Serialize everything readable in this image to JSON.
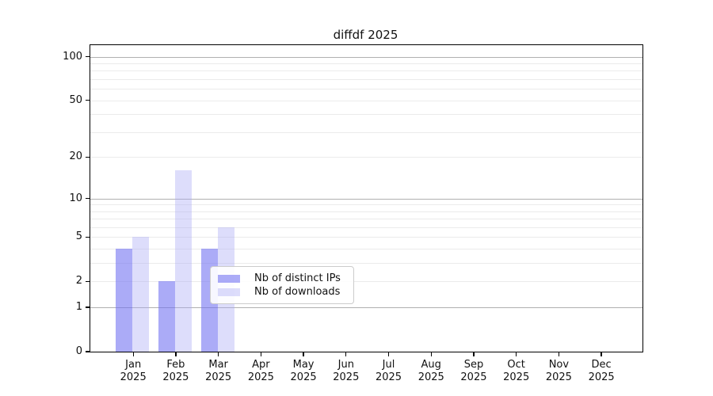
{
  "chart_data": {
    "type": "bar",
    "title": "diffdf 2025",
    "year": "2025",
    "scale": "log1p",
    "categories": [
      "Jan",
      "Feb",
      "Mar",
      "Apr",
      "May",
      "Jun",
      "Jul",
      "Aug",
      "Sep",
      "Oct",
      "Nov",
      "Dec"
    ],
    "series": [
      {
        "key": "distinct-ips",
        "name": "Nb of distinct IPs",
        "color": "rgba(110,110,242,0.58)",
        "values": [
          4,
          2,
          4,
          0,
          0,
          0,
          0,
          0,
          0,
          0,
          0,
          0
        ]
      },
      {
        "key": "downloads",
        "name": "Nb of downloads",
        "color": "rgba(170,170,245,0.40)",
        "values": [
          5,
          16,
          6,
          0,
          0,
          0,
          0,
          0,
          0,
          0,
          0,
          0
        ]
      }
    ],
    "yticks": [
      0,
      1,
      2,
      5,
      10,
      20,
      50,
      100
    ],
    "ylim": [
      0,
      120
    ],
    "grid": {
      "major": [
        1,
        10,
        100
      ],
      "minor": [
        2,
        3,
        4,
        5,
        6,
        7,
        8,
        9,
        20,
        30,
        40,
        50,
        60,
        70,
        80,
        90
      ]
    },
    "legend_position": "lower center",
    "colors": {
      "major_grid": "#b0b0b0",
      "minor_grid": "#ebebeb",
      "spine": "#000000",
      "text": "#111111",
      "background": "#ffffff"
    }
  }
}
